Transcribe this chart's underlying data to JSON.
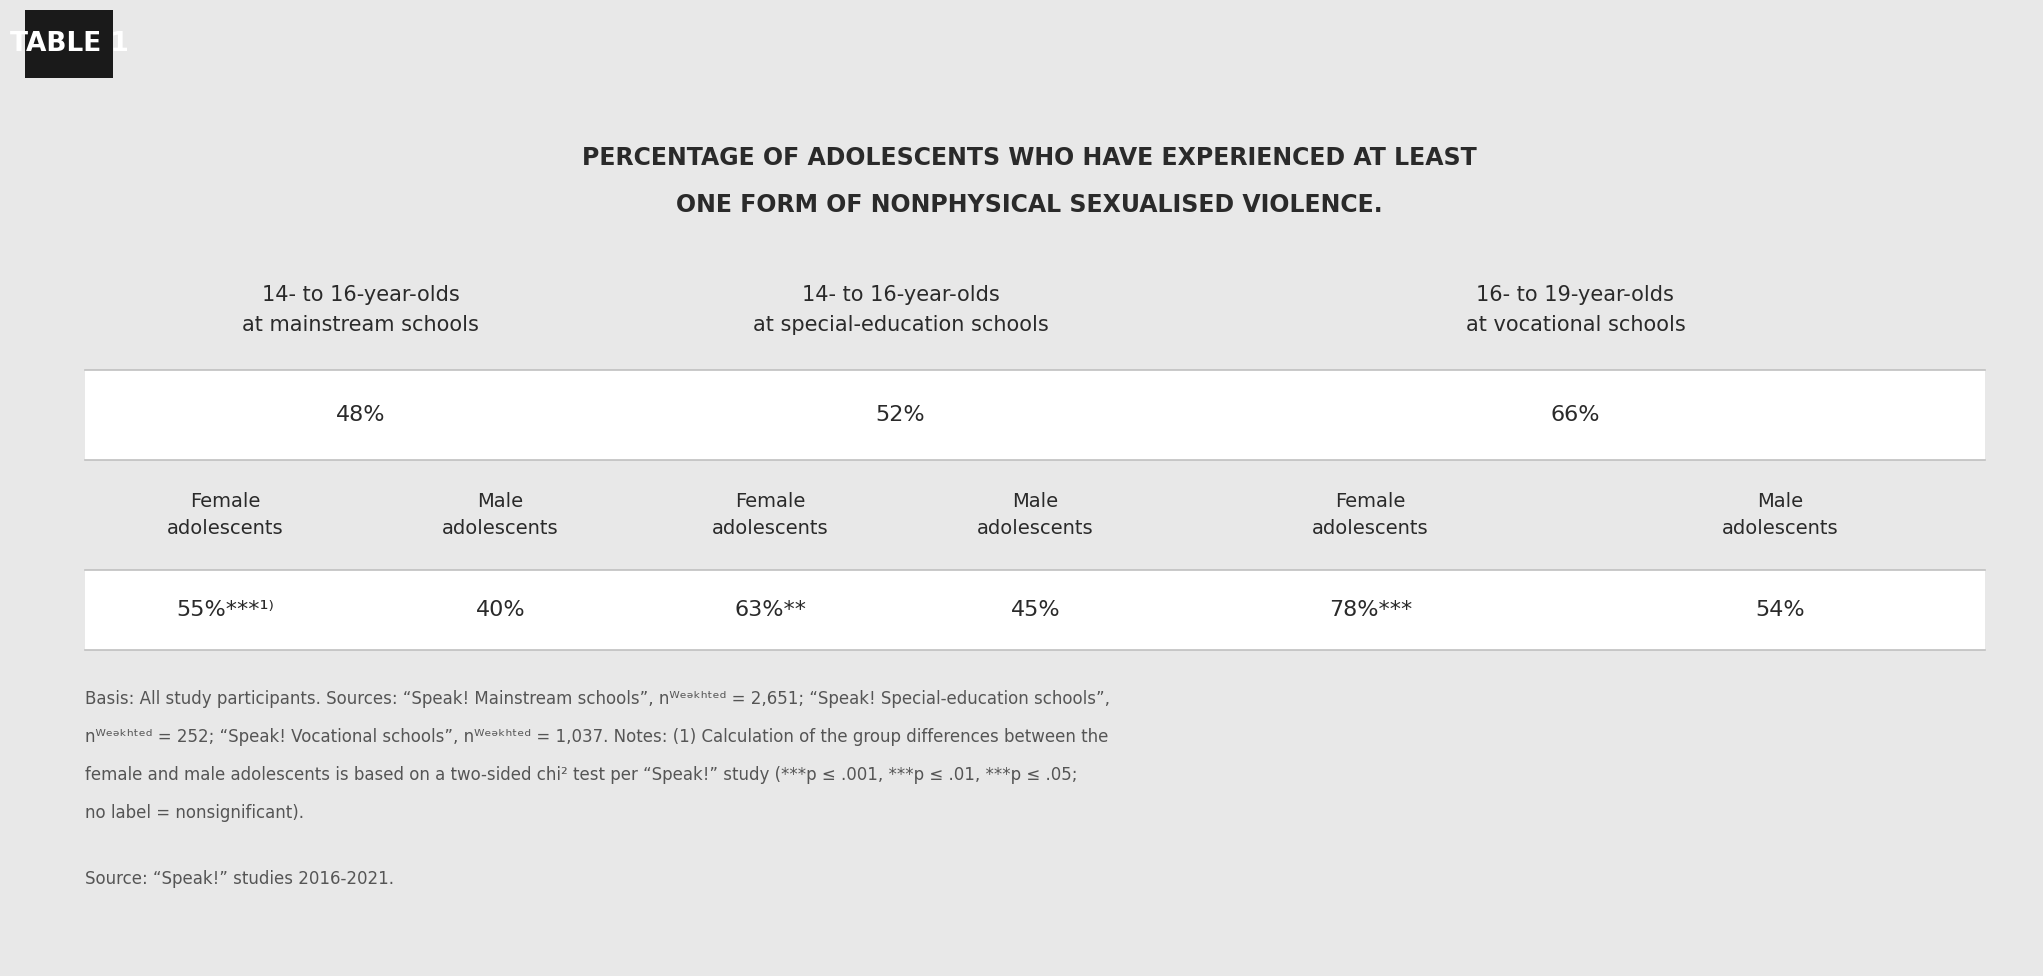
{
  "title_line1": "PERCENTAGE OF ADOLESCENTS WHO HAVE EXPERIENCED AT LEAST",
  "title_line2": "ONE FORM OF NONPHYSICAL SEXUALISED VIOLENCE.",
  "table_label": "TABLE 1",
  "col_headers": [
    "14- to 16-year-olds\nat mainstream schools",
    "14- to 16-year-olds\nat special-education schools",
    "16- to 19-year-olds\nat vocational schools"
  ],
  "overall_pct": [
    "48%",
    "52%",
    "66%"
  ],
  "gender_headers_flat": [
    "Female\nadolescents",
    "Male\nadolescents",
    "Female\nadolescents",
    "Male\nadolescents",
    "Female\nadolescents",
    "Male\nadolescents"
  ],
  "gender_values_flat": [
    "55%***¹⁾",
    "40%",
    "63%**",
    "45%",
    "78%***",
    "54%"
  ],
  "footnote_lines": [
    "Basis: All study participants. Sources: “Speak! Mainstream schools”, nᵂᵉᵊᵏʰᵗᵉᵈ = 2,651; “Speak! Special-education schools”,",
    "nᵂᵉᵊᵏʰᵗᵉᵈ = 252; “Speak! Vocational schools”, nᵂᵉᵊᵏʰᵗᵉᵈ = 1,037. Notes: (1) Calculation of the group differences between the",
    "female and male adolescents is based on a two-sided chi² test per “Speak!” study (***p ≤ .001, ***p ≤ .01, ***p ≤ .05;",
    "no label = nonsignificant)."
  ],
  "source_line": "Source: “Speak!” studies 2016-2021.",
  "bg_color": "#e8e8e8",
  "row_shaded_bg": "#f5f5f5",
  "table_label_bg": "#1a1a1a",
  "table_label_color": "#ffffff",
  "text_color": "#2a2a2a",
  "line_color": "#c0c0c0"
}
